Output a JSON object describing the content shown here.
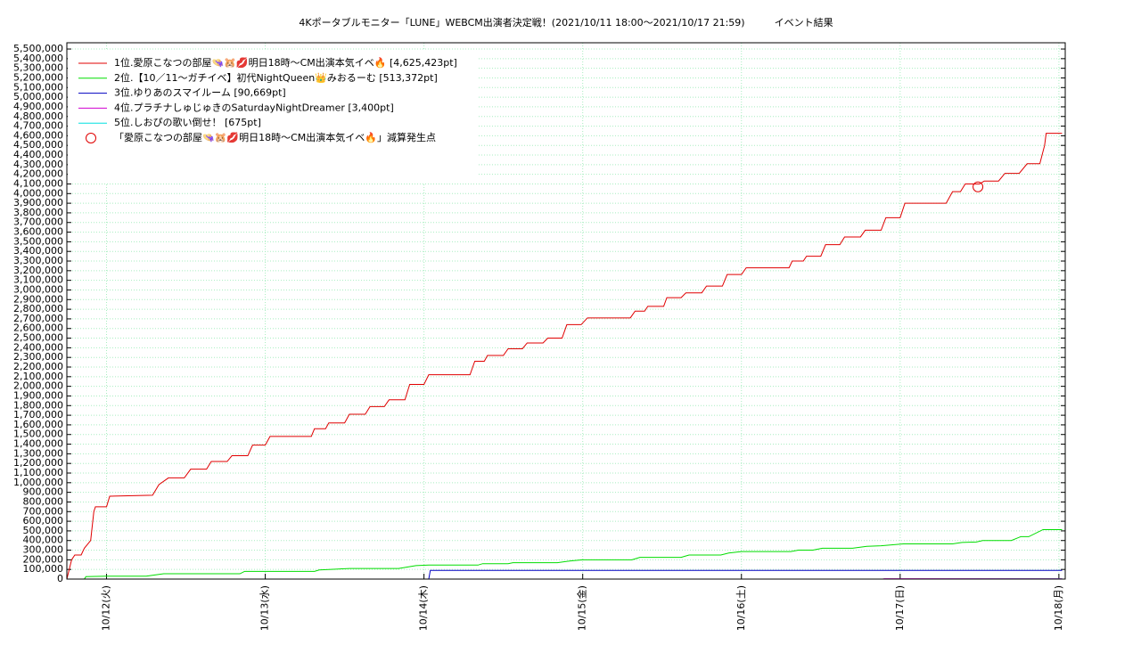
{
  "chart_data": {
    "type": "line",
    "title": "4Kポータブルモニター「LUNE」WEBCM出演者決定戦！(2021/10/11 18:00～2021/10/17 21:59)　　　イベント結果",
    "xlim": [
      11.75,
      18.04
    ],
    "xticks": [
      {
        "value": 12,
        "label": "10/12(火)"
      },
      {
        "value": 13,
        "label": "10/13(水)"
      },
      {
        "value": 14,
        "label": "10/14(木)"
      },
      {
        "value": 15,
        "label": "10/15(金)"
      },
      {
        "value": 16,
        "label": "10/16(土)"
      },
      {
        "value": 17,
        "label": "10/17(日)"
      },
      {
        "value": 18,
        "label": "10/18(月)"
      }
    ],
    "ylim": [
      0,
      5565000
    ],
    "yticks": [
      0,
      {
        "value": 100000,
        "label": "100,000"
      },
      {
        "value": 200000,
        "label": "200,000"
      },
      {
        "value": 300000,
        "label": "300,000"
      },
      {
        "value": 400000,
        "label": "400,000"
      },
      {
        "value": 500000,
        "label": "500,000"
      },
      {
        "value": 600000,
        "label": "600,000"
      },
      {
        "value": 700000,
        "label": "700,000"
      },
      {
        "value": 800000,
        "label": "800,000"
      },
      {
        "value": 900000,
        "label": "900,000"
      },
      {
        "value": 1000000,
        "label": "1,000,000"
      },
      {
        "value": 1100000,
        "label": "1,100,000"
      },
      {
        "value": 1200000,
        "label": "1,200,000"
      },
      {
        "value": 1300000,
        "label": "1,300,000"
      },
      {
        "value": 1400000,
        "label": "1,400,000"
      },
      {
        "value": 1500000,
        "label": "1,500,000"
      },
      {
        "value": 1600000,
        "label": "1,600,000"
      },
      {
        "value": 1700000,
        "label": "1,700,000"
      },
      {
        "value": 1800000,
        "label": "1,800,000"
      },
      {
        "value": 1900000,
        "label": "1,900,000"
      },
      {
        "value": 2000000,
        "label": "2,000,000"
      },
      {
        "value": 2100000,
        "label": "2,100,000"
      },
      {
        "value": 2200000,
        "label": "2,200,000"
      },
      {
        "value": 2300000,
        "label": "2,300,000"
      },
      {
        "value": 2400000,
        "label": "2,400,000"
      },
      {
        "value": 2500000,
        "label": "2,500,000"
      },
      {
        "value": 2600000,
        "label": "2,600,000"
      },
      {
        "value": 2700000,
        "label": "2,700,000"
      },
      {
        "value": 2800000,
        "label": "2,800,000"
      },
      {
        "value": 2900000,
        "label": "2,900,000"
      },
      {
        "value": 3000000,
        "label": "3,000,000"
      },
      {
        "value": 3100000,
        "label": "3,100,000"
      },
      {
        "value": 3200000,
        "label": "3,200,000"
      },
      {
        "value": 3300000,
        "label": "3,300,000"
      },
      {
        "value": 3400000,
        "label": "3,400,000"
      },
      {
        "value": 3500000,
        "label": "3,500,000"
      },
      {
        "value": 3600000,
        "label": "3,600,000"
      },
      {
        "value": 3700000,
        "label": "3,700,000"
      },
      {
        "value": 3800000,
        "label": "3,800,000"
      },
      {
        "value": 3900000,
        "label": "3,900,000"
      },
      {
        "value": 4000000,
        "label": "4,000,000"
      },
      {
        "value": 4100000,
        "label": "4,100,000"
      },
      {
        "value": 4200000,
        "label": "4,200,000"
      },
      {
        "value": 4300000,
        "label": "4,300,000"
      },
      {
        "value": 4400000,
        "label": "4,400,000"
      },
      {
        "value": 4500000,
        "label": "4,500,000"
      },
      {
        "value": 4600000,
        "label": "4,600,000"
      },
      {
        "value": 4700000,
        "label": "4,700,000"
      },
      {
        "value": 4800000,
        "label": "4,800,000"
      },
      {
        "value": 4900000,
        "label": "4,900,000"
      },
      {
        "value": 5000000,
        "label": "5,000,000"
      },
      {
        "value": 5100000,
        "label": "5,100,000"
      },
      {
        "value": 5200000,
        "label": "5,200,000"
      },
      {
        "value": 5300000,
        "label": "5,300,000"
      },
      {
        "value": 5400000,
        "label": "5,400,000"
      },
      {
        "value": 5500000,
        "label": "5,500,000"
      }
    ],
    "grid": true,
    "grid_color": "#a8eec0",
    "legend": "upper left",
    "series": [
      {
        "name": "1位.愛原こなつの部屋👒🐹💋明日18時〜CM出演本気イベ🔥 [4,625,423pt]",
        "color": "#e00000",
        "x": [
          11.75,
          11.78,
          11.8,
          11.84,
          11.86,
          11.9,
          11.92,
          11.93,
          12.0,
          12.02,
          12.29,
          12.33,
          12.39,
          12.49,
          12.53,
          12.63,
          12.66,
          12.76,
          12.79,
          12.89,
          12.92,
          13.0,
          13.03,
          13.29,
          13.31,
          13.38,
          13.4,
          13.5,
          13.53,
          13.63,
          13.66,
          13.75,
          13.78,
          13.88,
          13.91,
          14.0,
          14.03,
          14.29,
          14.32,
          14.38,
          14.4,
          14.5,
          14.53,
          14.62,
          14.65,
          14.75,
          14.78,
          14.87,
          14.9,
          14.99,
          15.03,
          15.3,
          15.33,
          15.39,
          15.41,
          15.51,
          15.53,
          15.62,
          15.65,
          15.75,
          15.78,
          15.88,
          15.91,
          16.0,
          16.03,
          16.3,
          16.32,
          16.39,
          16.41,
          16.5,
          16.53,
          16.62,
          16.65,
          16.75,
          16.78,
          16.88,
          16.91,
          17.0,
          17.03,
          17.29,
          17.33,
          17.38,
          17.41,
          17.5,
          17.53,
          17.62,
          17.66,
          17.75,
          17.8,
          17.88,
          17.91,
          17.92,
          18.02
        ],
        "values": [
          0,
          200000,
          250000,
          250000,
          320000,
          400000,
          700000,
          750000,
          750000,
          860000,
          870000,
          980000,
          1050000,
          1050000,
          1140000,
          1140000,
          1220000,
          1220000,
          1280000,
          1280000,
          1390000,
          1390000,
          1480000,
          1480000,
          1560000,
          1560000,
          1620000,
          1620000,
          1710000,
          1710000,
          1790000,
          1790000,
          1860000,
          1860000,
          2020000,
          2020000,
          2120000,
          2120000,
          2260000,
          2260000,
          2320000,
          2320000,
          2390000,
          2390000,
          2450000,
          2450000,
          2500000,
          2500000,
          2640000,
          2640000,
          2710000,
          2710000,
          2780000,
          2780000,
          2830000,
          2830000,
          2920000,
          2920000,
          2970000,
          2970000,
          3040000,
          3040000,
          3160000,
          3160000,
          3230000,
          3230000,
          3300000,
          3300000,
          3350000,
          3350000,
          3470000,
          3470000,
          3550000,
          3550000,
          3620000,
          3620000,
          3750000,
          3750000,
          3900000,
          3900000,
          4020000,
          4020000,
          4100000,
          4100000,
          4130000,
          4130000,
          4210000,
          4210000,
          4310000,
          4310000,
          4500000,
          4625423,
          4625423
        ]
      },
      {
        "name": "2位.【10／11〜ガチイベ】初代NightQueen👑みおるーむ [513,372pt]",
        "color": "#00dd00",
        "x": [
          11.86,
          11.87,
          12.0,
          12.25,
          12.36,
          12.84,
          12.87,
          13.31,
          13.34,
          13.53,
          13.84,
          13.95,
          14.03,
          14.34,
          14.37,
          14.53,
          14.56,
          14.84,
          14.93,
          15.0,
          15.31,
          15.36,
          15.62,
          15.67,
          15.87,
          15.92,
          16.0,
          16.31,
          16.36,
          16.45,
          16.51,
          16.7,
          16.79,
          16.88,
          17.02,
          17.33,
          17.39,
          17.48,
          17.52,
          17.7,
          17.76,
          17.81,
          17.9,
          18.02
        ],
        "values": [
          0,
          25000,
          30000,
          30000,
          55000,
          55000,
          80000,
          80000,
          95000,
          110000,
          110000,
          140000,
          145000,
          145000,
          160000,
          160000,
          170000,
          170000,
          190000,
          200000,
          200000,
          225000,
          225000,
          250000,
          250000,
          270000,
          285000,
          285000,
          300000,
          300000,
          320000,
          320000,
          340000,
          345000,
          365000,
          365000,
          380000,
          385000,
          400000,
          400000,
          440000,
          440000,
          513372,
          513372
        ]
      },
      {
        "name": "3位.ゆりあのスマイルーム [90,669pt]",
        "color": "#0000c0",
        "x": [
          14.03,
          14.04,
          18.02
        ],
        "values": [
          0,
          90669,
          90669
        ]
      },
      {
        "name": "4位.プラチナしゅじゅきのSaturdayNightDreamer [3,400pt]",
        "color": "#d000d0",
        "x": [
          16.89,
          16.9,
          18.02
        ],
        "values": [
          0,
          3400,
          3400
        ]
      },
      {
        "name": "5位.しおぴの歌い倒せ！ [675pt]",
        "color": "#00e0e0",
        "x": [
          11.75,
          18.02
        ],
        "values": [
          0,
          675
        ]
      }
    ],
    "markers": [
      {
        "name": "「愛原こなつの部屋👒🐹💋明日18時〜CM出演本気イベ🔥」減算発生点",
        "color": "#e00000",
        "x": 17.49,
        "y": 4070000
      }
    ]
  }
}
